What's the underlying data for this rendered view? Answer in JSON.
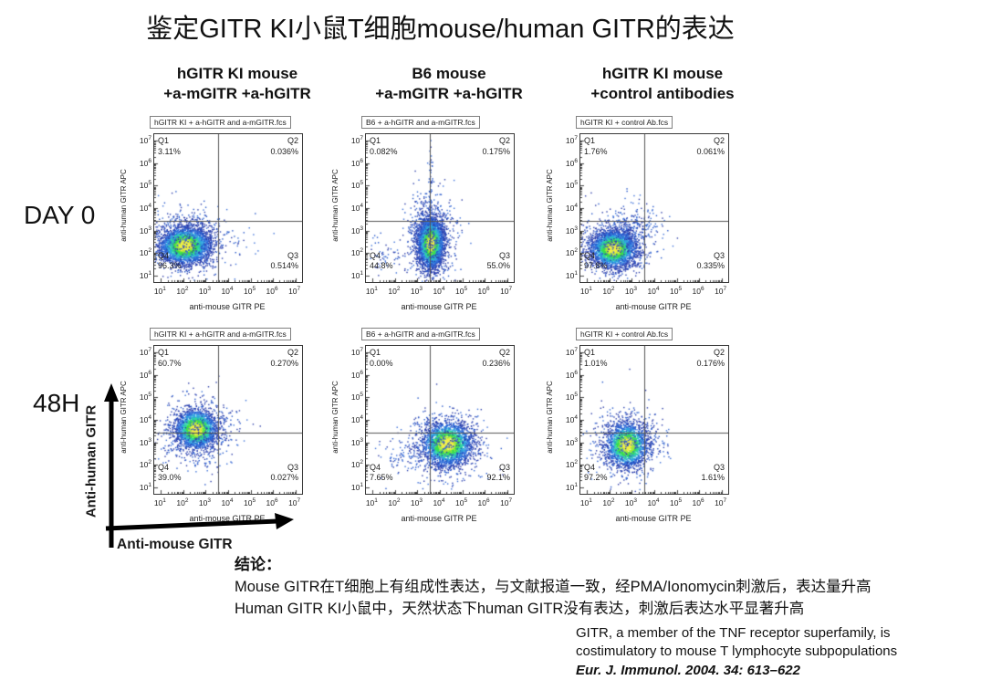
{
  "title": "鉴定GITR KI小鼠T细胞mouse/human GITR的表达",
  "columns": [
    {
      "line1": "hGITR KI mouse",
      "line2": "+a-mGITR +a-hGITR"
    },
    {
      "line1": "B6 mouse",
      "line2": "+a-mGITR +a-hGITR"
    },
    {
      "line1": "hGITR KI mouse",
      "line2": "+control antibodies"
    }
  ],
  "rows": [
    {
      "label": "DAY 0"
    },
    {
      "label": "48H"
    }
  ],
  "arrows": {
    "y_label": "Anti-human GITR",
    "x_label": "Anti-mouse GITR"
  },
  "conclusion": {
    "heading": "结论：",
    "line1": "Mouse GITR在T细胞上有组成性表达，与文献报道一致，经PMA/Ionomycin刺激后，表达量升高",
    "line2": "Human GITR KI小鼠中，天然状态下human GITR没有表达，刺激后表达水平显著升高"
  },
  "citation": {
    "line1": "GITR, a member of the TNF receptor superfamily, is",
    "line2": "costimulatory to mouse T lymphocyte subpopulations",
    "reference": "Eur. J. Immunol. 2004. 34: 613–622"
  },
  "colors": {
    "density_low": "#2c3da8",
    "density_mid": "#2fa9e0",
    "density_high": "#3fe34a",
    "density_peak": "#f7f750",
    "gate_line": "#555555",
    "frame": "#3a3a3a"
  },
  "chart_data": [
    {
      "type": "scatter",
      "id": "day0-hgitr-ki",
      "row": "DAY 0",
      "column": "hGITR KI mouse +a-mGITR +a-hGITR",
      "file_label": "hGITR KI + a-hGITR and a-mGITR.fcs",
      "xlabel": "anti-mouse GITR PE",
      "ylabel": "anti-human GITR APC",
      "ticks": [
        1,
        2,
        3,
        4,
        5,
        6,
        7
      ],
      "xlim_log": [
        0.7,
        7.3
      ],
      "ylim_log": [
        0.7,
        7.3
      ],
      "gate": {
        "x_log": 3.55,
        "y_log": 3.42
      },
      "quadrants": [
        {
          "name": "Q1",
          "pct": "3.11%"
        },
        {
          "name": "Q2",
          "pct": "0.036%"
        },
        {
          "name": "Q3",
          "pct": "0.514%"
        },
        {
          "name": "Q4",
          "pct": "96.3%"
        }
      ],
      "clusters": [
        {
          "cx": 2.05,
          "cy": 2.35,
          "sx": 0.58,
          "sy": 0.42,
          "n": 3200
        },
        {
          "cx": 2.2,
          "cy": 2.6,
          "sx": 0.95,
          "sy": 0.75,
          "n": 550,
          "sparse": true
        },
        {
          "cx": 4.4,
          "cy": 2.7,
          "sx": 0.7,
          "sy": 0.5,
          "n": 18,
          "sparse": true
        }
      ]
    },
    {
      "type": "scatter",
      "id": "day0-b6",
      "row": "DAY 0",
      "column": "B6 mouse +a-mGITR +a-hGITR",
      "file_label": "B6 + a-hGITR and a-mGITR.fcs",
      "xlabel": "anti-mouse GITR PE",
      "ylabel": "anti-human GITR APC",
      "ticks": [
        1,
        2,
        3,
        4,
        5,
        6,
        7
      ],
      "xlim_log": [
        0.7,
        7.3
      ],
      "ylim_log": [
        0.7,
        7.3
      ],
      "gate": {
        "x_log": 3.55,
        "y_log": 3.42
      },
      "quadrants": [
        {
          "name": "Q1",
          "pct": "0.082%"
        },
        {
          "name": "Q2",
          "pct": "0.175%"
        },
        {
          "name": "Q3",
          "pct": "55.0%"
        },
        {
          "name": "Q4",
          "pct": "44.8%"
        }
      ],
      "clusters": [
        {
          "cx": 3.57,
          "cy": 2.45,
          "sx": 0.3,
          "sy": 0.58,
          "n": 3200
        },
        {
          "cx": 3.55,
          "cy": 2.8,
          "sx": 0.55,
          "sy": 0.95,
          "n": 550,
          "sparse": true
        },
        {
          "cx": 3.55,
          "cy": 5.2,
          "sx": 0.05,
          "sy": 1.0,
          "n": 45,
          "sparse": true
        },
        {
          "cx": 1.6,
          "cy": 2.0,
          "sx": 0.5,
          "sy": 0.5,
          "n": 60,
          "sparse": true
        }
      ]
    },
    {
      "type": "scatter",
      "id": "day0-hgitr-ki-control",
      "row": "DAY 0",
      "column": "hGITR KI mouse +control antibodies",
      "file_label": "hGITR KI + control Ab.fcs",
      "xlabel": "anti-mouse GITR PE",
      "ylabel": "anti-human GITR APC",
      "ticks": [
        1,
        2,
        3,
        4,
        5,
        6,
        7
      ],
      "xlim_log": [
        0.7,
        7.3
      ],
      "ylim_log": [
        0.7,
        7.3
      ],
      "gate": {
        "x_log": 3.55,
        "y_log": 3.42
      },
      "quadrants": [
        {
          "name": "Q1",
          "pct": "1.76%"
        },
        {
          "name": "Q2",
          "pct": "0.061%"
        },
        {
          "name": "Q3",
          "pct": "0.335%"
        },
        {
          "name": "Q4",
          "pct": "97.8%"
        }
      ],
      "clusters": [
        {
          "cx": 2.15,
          "cy": 2.2,
          "sx": 0.52,
          "sy": 0.42,
          "n": 3000
        },
        {
          "cx": 2.5,
          "cy": 2.6,
          "sx": 0.85,
          "sy": 0.7,
          "n": 500,
          "sparse": true
        },
        {
          "cx": 3.3,
          "cy": 3.3,
          "sx": 0.55,
          "sy": 0.45,
          "n": 90,
          "sparse": true
        }
      ]
    },
    {
      "type": "scatter",
      "id": "48h-hgitr-ki",
      "row": "48H",
      "column": "hGITR KI mouse +a-mGITR +a-hGITR",
      "file_label": "hGITR KI + a-hGITR and a-mGITR.fcs",
      "xlabel": "anti-mouse GITR PE",
      "ylabel": "anti-human GITR APC",
      "ticks": [
        1,
        2,
        3,
        4,
        5,
        6,
        7
      ],
      "xlim_log": [
        0.7,
        7.3
      ],
      "ylim_log": [
        0.7,
        7.3
      ],
      "gate": {
        "x_log": 3.55,
        "y_log": 3.42
      },
      "quadrants": [
        {
          "name": "Q1",
          "pct": "60.7%"
        },
        {
          "name": "Q2",
          "pct": "0.270%"
        },
        {
          "name": "Q3",
          "pct": "0.027%"
        },
        {
          "name": "Q4",
          "pct": "39.0%"
        }
      ],
      "clusters": [
        {
          "cx": 2.55,
          "cy": 3.6,
          "sx": 0.48,
          "sy": 0.45,
          "n": 2300
        },
        {
          "cx": 2.6,
          "cy": 3.5,
          "sx": 0.85,
          "sy": 0.8,
          "n": 450,
          "sparse": true
        }
      ]
    },
    {
      "type": "scatter",
      "id": "48h-b6",
      "row": "48H",
      "column": "B6 mouse +a-mGITR +a-hGITR",
      "file_label": "B6 + a-hGITR and a-mGITR.fcs",
      "xlabel": "anti-mouse GITR PE",
      "ylabel": "anti-human GITR APC",
      "ticks": [
        1,
        2,
        3,
        4,
        5,
        6,
        7
      ],
      "xlim_log": [
        0.7,
        7.3
      ],
      "ylim_log": [
        0.7,
        7.3
      ],
      "gate": {
        "x_log": 3.55,
        "y_log": 3.42
      },
      "quadrants": [
        {
          "name": "Q1",
          "pct": "0.00%"
        },
        {
          "name": "Q2",
          "pct": "0.236%"
        },
        {
          "name": "Q3",
          "pct": "92.1%"
        },
        {
          "name": "Q4",
          "pct": "7.65%"
        }
      ],
      "clusters": [
        {
          "cx": 4.3,
          "cy": 2.95,
          "sx": 0.58,
          "sy": 0.5,
          "n": 2500
        },
        {
          "cx": 4.15,
          "cy": 2.9,
          "sx": 1.0,
          "sy": 0.85,
          "n": 500,
          "sparse": true
        },
        {
          "cx": 2.2,
          "cy": 2.3,
          "sx": 0.55,
          "sy": 0.45,
          "n": 60,
          "sparse": true
        }
      ]
    },
    {
      "type": "scatter",
      "id": "48h-hgitr-ki-control",
      "row": "48H",
      "column": "hGITR KI mouse +control antibodies",
      "file_label": "hGITR KI + control Ab.fcs",
      "xlabel": "anti-mouse GITR PE",
      "ylabel": "anti-human GITR APC",
      "ticks": [
        1,
        2,
        3,
        4,
        5,
        6,
        7
      ],
      "xlim_log": [
        0.7,
        7.3
      ],
      "ylim_log": [
        0.7,
        7.3
      ],
      "gate": {
        "x_log": 3.55,
        "y_log": 3.42
      },
      "quadrants": [
        {
          "name": "Q1",
          "pct": "1.01%"
        },
        {
          "name": "Q2",
          "pct": "0.176%"
        },
        {
          "name": "Q3",
          "pct": "1.61%"
        },
        {
          "name": "Q4",
          "pct": "97.2%"
        }
      ],
      "clusters": [
        {
          "cx": 2.75,
          "cy": 2.9,
          "sx": 0.48,
          "sy": 0.5,
          "n": 2000
        },
        {
          "cx": 2.8,
          "cy": 2.9,
          "sx": 0.85,
          "sy": 0.85,
          "n": 420,
          "sparse": true
        }
      ]
    }
  ]
}
